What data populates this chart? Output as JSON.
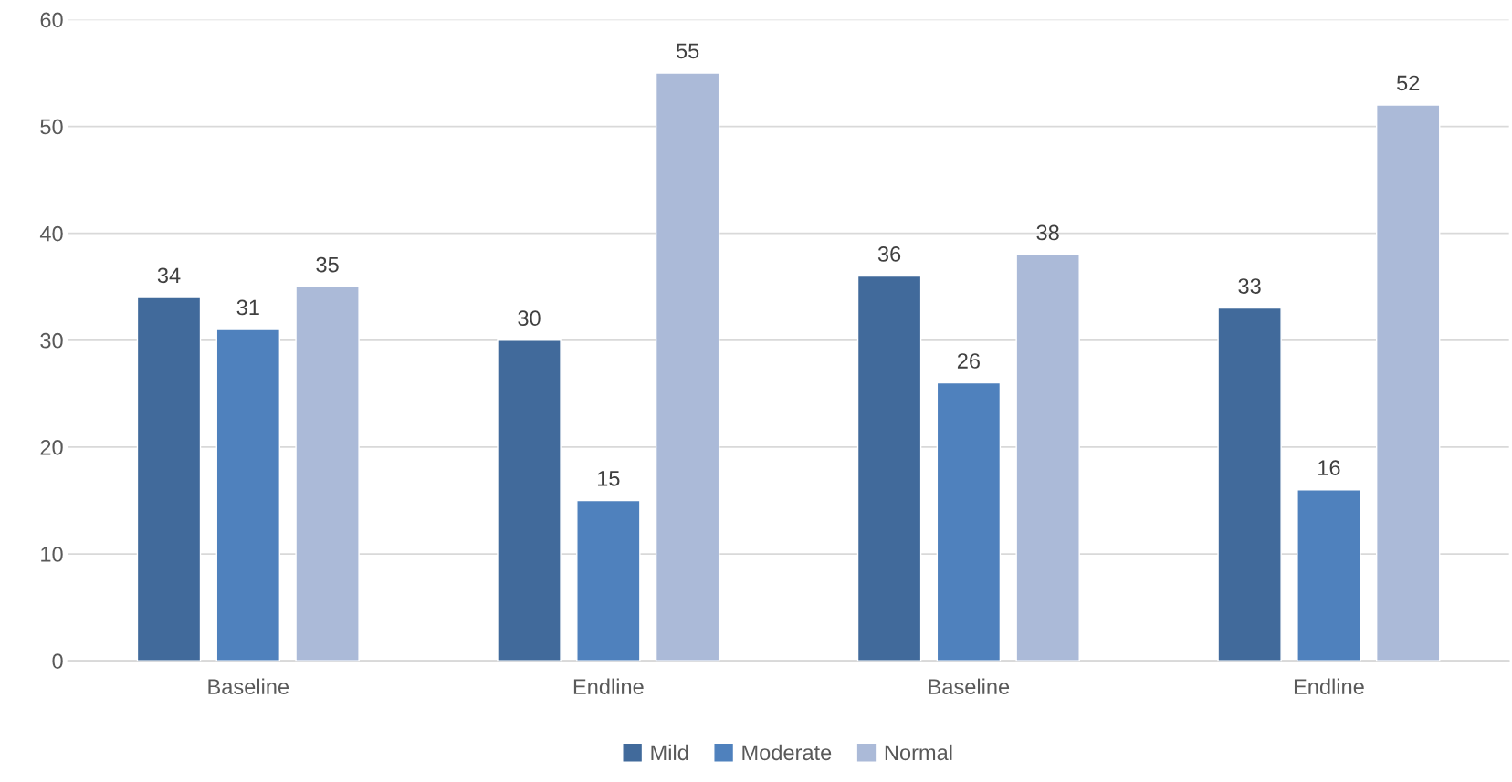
{
  "chart_data": {
    "type": "bar",
    "categories": [
      "Baseline",
      "Endline",
      "Baseline",
      "Endline"
    ],
    "series": [
      {
        "name": "Mild",
        "color": "#416a9b",
        "values": [
          34,
          30,
          36,
          33
        ]
      },
      {
        "name": "Moderate",
        "color": "#4f81bd",
        "values": [
          31,
          15,
          26,
          16
        ]
      },
      {
        "name": "Normal",
        "color": "#abbad8",
        "values": [
          35,
          55,
          38,
          52
        ]
      }
    ],
    "ylim": [
      0,
      60
    ],
    "yticks": [
      0,
      10,
      20,
      30,
      40,
      50,
      60
    ],
    "grid": "y",
    "legend": "bottom",
    "data_labels": true
  }
}
